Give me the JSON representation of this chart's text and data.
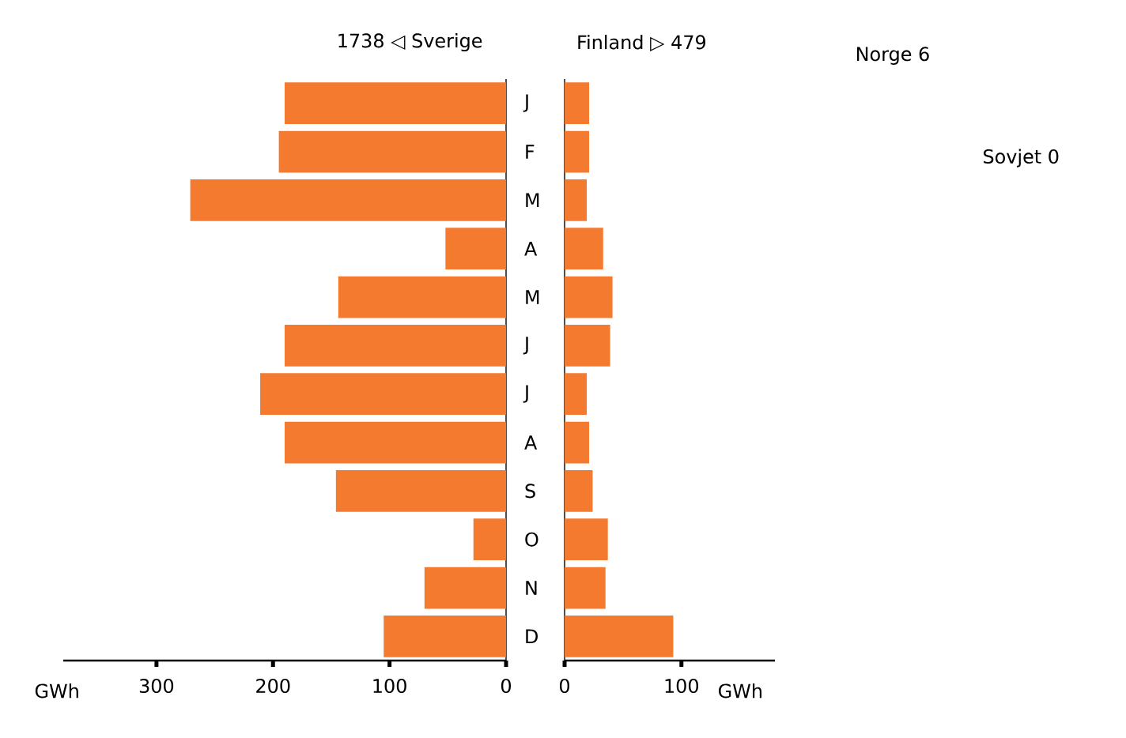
{
  "chart_data": [
    {
      "type": "bar",
      "orientation": "horizontal",
      "title": "1738 ◁ Sverige",
      "xlabel": "GWh",
      "categories": [
        "J",
        "F",
        "M",
        "A",
        "M",
        "J",
        "J",
        "A",
        "S",
        "O",
        "N",
        "D"
      ],
      "values": [
        190,
        195,
        271,
        52,
        144,
        190,
        211,
        190,
        146,
        28,
        70,
        105
      ],
      "color": "#f47a30",
      "xlim": [
        380,
        0
      ],
      "xticks": [
        0,
        100,
        200,
        300
      ]
    },
    {
      "type": "bar",
      "orientation": "horizontal",
      "title": "Finland ▷ 479",
      "xlabel": "GWh",
      "categories": [
        null,
        null,
        null,
        null,
        null,
        null,
        null,
        null,
        null,
        null,
        null,
        null
      ],
      "values": [
        21,
        21,
        19,
        33,
        41,
        39,
        19,
        21,
        24,
        37,
        35,
        93
      ],
      "color": "#f47a30",
      "xlim": [
        0,
        180
      ],
      "xticks": [
        0,
        100
      ],
      "tick_labels": "x",
      "annotations": [
        "Norge 6",
        "Sovjet 0"
      ]
    }
  ]
}
